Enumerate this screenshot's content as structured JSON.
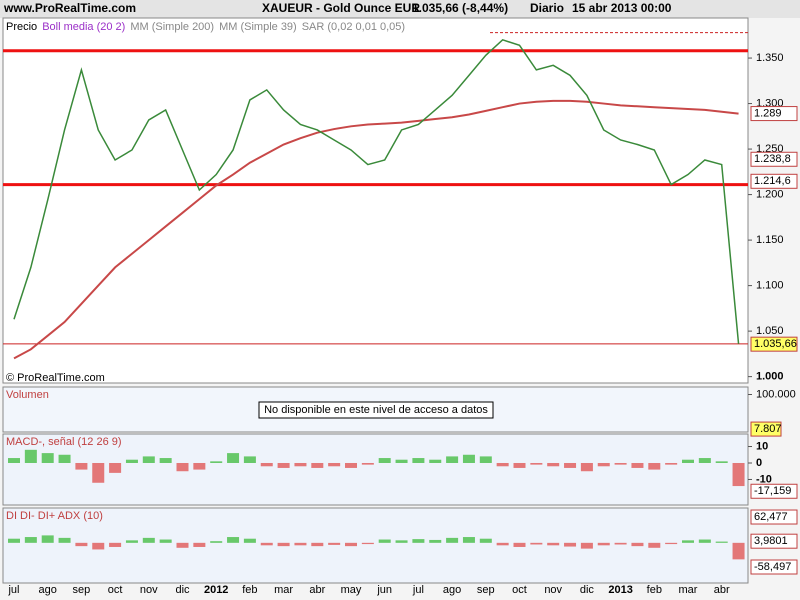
{
  "header": {
    "site": "www.ProRealTime.com",
    "title": "XAUEUR - Gold Ounce EUR",
    "change": "1.035,66 (-8,44%)",
    "period": "Diario",
    "date": "15 abr 2013 00:00"
  },
  "watermark": "© ProRealTime.com",
  "volume_panel": {
    "label": "Volumen",
    "notice": "No disponible en este nivel de acceso a datos",
    "ylim": [
      0,
      120000
    ],
    "yticks": [
      {
        "value": 100000,
        "label": "100.000"
      }
    ],
    "last": {
      "value": 7807,
      "label": "7.807"
    }
  },
  "chart_data": [
    {
      "type": "line",
      "indicator_labels": [
        "Boll media (20 2)",
        "MM (Simple 39)",
        "SAR (0,02 0,01 0,05)"
      ],
      "categories": [
        "jul",
        null,
        "ago",
        null,
        "sep",
        null,
        "oct",
        null,
        "nov",
        null,
        "dic",
        null,
        "2012",
        null,
        "feb",
        null,
        "mar",
        null,
        "abr",
        null,
        "may",
        null,
        "jun",
        null,
        "jul",
        null,
        "ago",
        null,
        "sep",
        null,
        "oct",
        null,
        "nov",
        null,
        "dic",
        null,
        "2013",
        null,
        "feb",
        null,
        "mar",
        null,
        "abr",
        null
      ],
      "series": [
        {
          "name": "Precio",
          "color": "#3a8a3a",
          "values": [
            1.063,
            1.12,
            1.194,
            1.271,
            1.337,
            1.271,
            1.238,
            1.249,
            1.282,
            1.293,
            1.249,
            1.205,
            1.222,
            1.249,
            1.304,
            1.315,
            1.293,
            1.277,
            1.271,
            1.26,
            1.249,
            1.233,
            1.238,
            1.271,
            1.277,
            1.293,
            1.309,
            1.331,
            1.353,
            1.37,
            1.364,
            1.337,
            1.342,
            1.331,
            1.309,
            1.271,
            1.26,
            1.255,
            1.249,
            1.211,
            1.222,
            1.238,
            1.233,
            1.036
          ]
        },
        {
          "name": "MM (Simple 200)",
          "color": "#c84848",
          "values": [
            1.02,
            1.03,
            1.045,
            1.06,
            1.08,
            1.1,
            1.12,
            1.135,
            1.15,
            1.165,
            1.18,
            1.195,
            1.21,
            1.222,
            1.235,
            1.245,
            1.255,
            1.262,
            1.268,
            1.272,
            1.275,
            1.277,
            1.278,
            1.279,
            1.281,
            1.283,
            1.285,
            1.288,
            1.292,
            1.296,
            1.3,
            1.302,
            1.303,
            1.303,
            1.302,
            1.3,
            1.298,
            1.297,
            1.296,
            1.295,
            1.294,
            1.293,
            1.291,
            1.289
          ]
        }
      ],
      "ylim": [
        0.993,
        1.394
      ],
      "yticks": [
        {
          "value": 1.0,
          "label": "1.000"
        },
        {
          "value": 1.05,
          "label": "1.050"
        },
        {
          "value": 1.1,
          "label": "1.100"
        },
        {
          "value": 1.15,
          "label": "1.150"
        },
        {
          "value": 1.2,
          "label": "1.200"
        },
        {
          "value": 1.25,
          "label": "1.250"
        },
        {
          "value": 1.3,
          "label": "1.300"
        },
        {
          "value": 1.35,
          "label": "1.350"
        }
      ],
      "levels": [
        {
          "value": 1.358,
          "style": "thick"
        },
        {
          "value": 1.211,
          "style": "thick"
        },
        {
          "value": 1.036,
          "style": "thin"
        },
        {
          "value": 1.378,
          "style": "dashed"
        }
      ],
      "price_labels": [
        {
          "value": 1.289,
          "label": "1.289"
        },
        {
          "value": 1.2388,
          "label": "1.238,8"
        },
        {
          "value": 1.2146,
          "label": "1.214,6"
        }
      ],
      "last_price": {
        "value": 1.03566,
        "label": "1.035,66"
      }
    },
    {
      "type": "bar",
      "title": "MACD-, señal (12 26 9)",
      "ylim": [
        -25.5,
        17.6
      ],
      "yticks": [
        10,
        0,
        -10
      ],
      "values": [
        3,
        8,
        6,
        5,
        -4,
        -12,
        -6,
        2,
        4,
        3,
        -5,
        -4,
        1,
        6,
        4,
        -2,
        -3,
        -2,
        -3,
        -2,
        -3,
        -1,
        3,
        2,
        3,
        2,
        4,
        5,
        4,
        -2,
        -3,
        -1,
        -2,
        -3,
        -5,
        -2,
        -1,
        -3,
        -4,
        -1,
        2,
        3,
        1,
        -14
      ],
      "last": {
        "value": -17.159,
        "label": "-17,159"
      }
    },
    {
      "type": "bar",
      "title": "DI DI- DI+ ADX (10)",
      "ylim": [
        -97.2,
        84.3
      ],
      "values": [
        10,
        14,
        18,
        12,
        -8,
        -16,
        -10,
        6,
        12,
        8,
        -12,
        -10,
        4,
        14,
        10,
        -6,
        -8,
        -6,
        -8,
        -5,
        -8,
        -3,
        8,
        6,
        9,
        7,
        12,
        14,
        10,
        -6,
        -10,
        -4,
        -6,
        -9,
        -14,
        -6,
        -4,
        -8,
        -12,
        -3,
        6,
        8,
        3,
        -40
      ],
      "last_labels": [
        {
          "value": 62.477,
          "label": "62,477"
        },
        {
          "value": 3.9801,
          "label": "3,9801"
        },
        {
          "value": -58.497,
          "label": "-58,497"
        }
      ]
    }
  ]
}
